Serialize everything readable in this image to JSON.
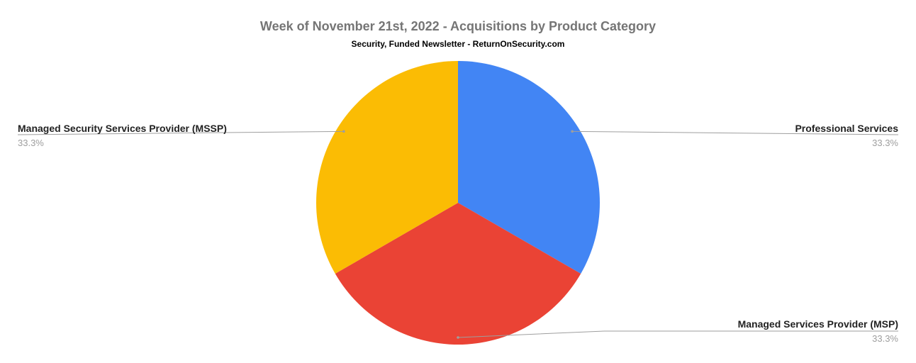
{
  "chart_data": {
    "type": "pie",
    "title": "Week of November 21st, 2022 - Acquisitions by Product Category",
    "subtitle": "Security, Funded Newsletter - ReturnOnSecurity.com",
    "slices": [
      {
        "label": "Professional Services",
        "percent_label": "33.3%",
        "value": 33.3,
        "color": "#4285f4"
      },
      {
        "label": "Managed Services Provider (MSP)",
        "percent_label": "33.3%",
        "value": 33.3,
        "color": "#ea4335"
      },
      {
        "label": "Managed Security Services Provider (MSSP)",
        "percent_label": "33.3%",
        "value": 33.3,
        "color": "#fbbc04"
      }
    ],
    "legend": "none"
  }
}
